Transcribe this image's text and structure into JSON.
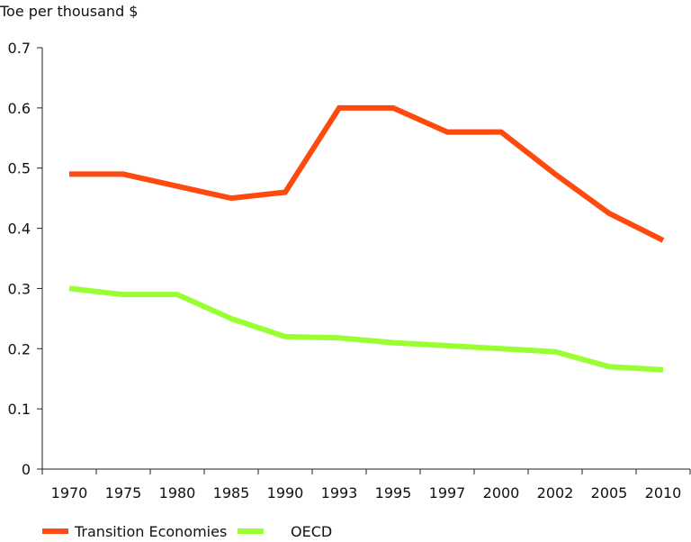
{
  "chart_data": {
    "type": "line",
    "ylabel": "Toe per thousand $",
    "ylim": [
      0,
      0.7
    ],
    "y_ticks": [
      "0",
      "0.1",
      "0.2",
      "0.3",
      "0.4",
      "0.5",
      "0.6",
      "0.7"
    ],
    "categories": [
      "1970",
      "1975",
      "1980",
      "1985",
      "1990",
      "1993",
      "1995",
      "1997",
      "2000",
      "2002",
      "2005",
      "2010"
    ],
    "series": [
      {
        "name": "Transition Economies",
        "color": "#ff4a0f",
        "values": [
          0.49,
          0.49,
          0.47,
          0.45,
          0.46,
          0.6,
          0.6,
          0.56,
          0.56,
          0.49,
          0.425,
          0.38
        ]
      },
      {
        "name": "OECD",
        "color": "#99ff33",
        "values": [
          0.3,
          0.29,
          0.29,
          0.25,
          0.22,
          0.218,
          0.21,
          0.205,
          0.2,
          0.195,
          0.17,
          0.165
        ]
      }
    ],
    "grid": false,
    "legend_position": "bottom-left"
  }
}
